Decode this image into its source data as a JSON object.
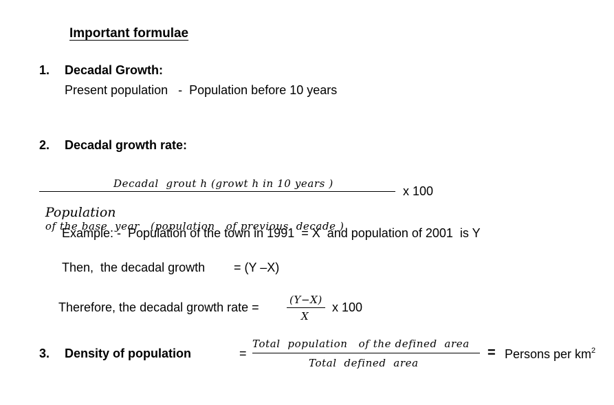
{
  "title": "Important formulae",
  "items": [
    {
      "number": "1.",
      "heading": "Decadal Growth:",
      "formula": "Present population   -  Population before 10 years"
    },
    {
      "number": "2.",
      "heading": "Decadal growth rate:",
      "fraction": {
        "numerator": "Decadal  grout h (growt h in 10 years )",
        "denominator_lead": "Population",
        "denominator_rest": "of the base  year   (population   of previous  decade )",
        "multiplier": "x 100"
      },
      "example": "Example: -  Population of the town in 1991  = X  and population of 2001  is Y",
      "then_label": "Then,  the decadal growth",
      "then_value": "= (Y –X)",
      "therefore_label": "Therefore, the decadal growth rate =",
      "therefore_fraction": {
        "numerator": "(Y−X)",
        "denominator": "X",
        "multiplier": "x 100"
      }
    },
    {
      "number": "3.",
      "heading": "Density of population",
      "equals": "=",
      "fraction": {
        "numerator": "Total  population   of the defined  area",
        "denominator": "Total  defined  area"
      },
      "result_equals": "=",
      "result": "Persons per km",
      "result_superscript": "2"
    }
  ]
}
